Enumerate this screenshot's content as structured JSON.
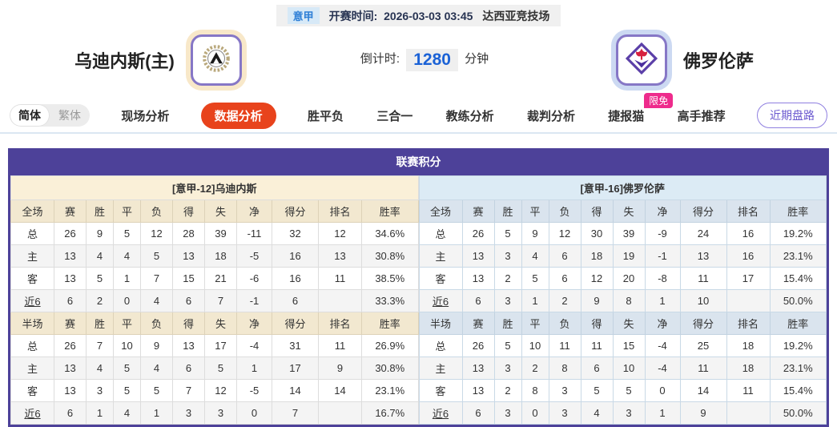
{
  "top": {
    "league": "意甲",
    "kickoff_label": "开赛时间:",
    "kickoff_time": "2026-03-03 03:45",
    "venue": "达西亚竞技场"
  },
  "teams": {
    "home_name": "乌迪内斯(主)",
    "away_name": "佛罗伦萨",
    "home_logo": "udinese-crest",
    "away_logo": "fiorentina-crest",
    "countdown_label": "倒计时:",
    "countdown_value": "1280",
    "countdown_unit": "分钟"
  },
  "nav": {
    "lang_simplified": "简体",
    "lang_traditional": "繁体",
    "tabs": [
      {
        "label": "现场分析",
        "active": false
      },
      {
        "label": "数据分析",
        "active": true
      },
      {
        "label": "胜平负",
        "active": false
      },
      {
        "label": "三合一",
        "active": false
      },
      {
        "label": "教练分析",
        "active": false
      },
      {
        "label": "裁判分析",
        "active": false
      },
      {
        "label": "捷报猫",
        "active": false,
        "badge": "限免"
      },
      {
        "label": "高手推荐",
        "active": false
      }
    ],
    "right_button": "近期盘路"
  },
  "colors": {
    "accent_purple": "#4d4199",
    "active_tab_orange": "#e8431c",
    "badge_pink": "#ee2b8c",
    "home_label_red": "#cc2a22",
    "away_label_blue": "#2742cc",
    "home_header_cream": "#faf0d8",
    "away_header_blue": "#dcebf5",
    "countdown_blue": "#1b62d6"
  },
  "table": {
    "title": "联赛积分",
    "home": {
      "header": "[意甲-12]乌迪内斯",
      "sections": [
        {
          "label_col": "全场",
          "columns": [
            "赛",
            "胜",
            "平",
            "负",
            "得",
            "失",
            "净",
            "得分",
            "排名",
            "胜率"
          ],
          "rows": [
            {
              "label": "总",
              "type": "total",
              "cells": [
                "26",
                "9",
                "5",
                "12",
                "28",
                "39",
                "-11",
                "32",
                "12",
                "34.6%"
              ]
            },
            {
              "label": "主",
              "type": "home",
              "cells": [
                "13",
                "4",
                "4",
                "5",
                "13",
                "18",
                "-5",
                "16",
                "13",
                "30.8%"
              ]
            },
            {
              "label": "客",
              "type": "away",
              "cells": [
                "13",
                "5",
                "1",
                "7",
                "15",
                "21",
                "-6",
                "16",
                "11",
                "38.5%"
              ]
            },
            {
              "label": "近6",
              "type": "recent",
              "cells": [
                "6",
                "2",
                "0",
                "4",
                "6",
                "7",
                "-1",
                "6",
                "",
                "33.3%"
              ]
            }
          ]
        },
        {
          "label_col": "半场",
          "columns": [
            "赛",
            "胜",
            "平",
            "负",
            "得",
            "失",
            "净",
            "得分",
            "排名",
            "胜率"
          ],
          "rows": [
            {
              "label": "总",
              "type": "total",
              "cells": [
                "26",
                "7",
                "10",
                "9",
                "13",
                "17",
                "-4",
                "31",
                "11",
                "26.9%"
              ]
            },
            {
              "label": "主",
              "type": "home",
              "cells": [
                "13",
                "4",
                "5",
                "4",
                "6",
                "5",
                "1",
                "17",
                "9",
                "30.8%"
              ]
            },
            {
              "label": "客",
              "type": "away",
              "cells": [
                "13",
                "3",
                "5",
                "5",
                "7",
                "12",
                "-5",
                "14",
                "14",
                "23.1%"
              ]
            },
            {
              "label": "近6",
              "type": "recent",
              "cells": [
                "6",
                "1",
                "4",
                "1",
                "3",
                "3",
                "0",
                "7",
                "",
                "16.7%"
              ]
            }
          ]
        }
      ]
    },
    "away": {
      "header": "[意甲-16]佛罗伦萨",
      "sections": [
        {
          "label_col": "全场",
          "columns": [
            "赛",
            "胜",
            "平",
            "负",
            "得",
            "失",
            "净",
            "得分",
            "排名",
            "胜率"
          ],
          "rows": [
            {
              "label": "总",
              "type": "total",
              "cells": [
                "26",
                "5",
                "9",
                "12",
                "30",
                "39",
                "-9",
                "24",
                "16",
                "19.2%"
              ]
            },
            {
              "label": "主",
              "type": "home",
              "cells": [
                "13",
                "3",
                "4",
                "6",
                "18",
                "19",
                "-1",
                "13",
                "16",
                "23.1%"
              ]
            },
            {
              "label": "客",
              "type": "away",
              "cells": [
                "13",
                "2",
                "5",
                "6",
                "12",
                "20",
                "-8",
                "11",
                "17",
                "15.4%"
              ]
            },
            {
              "label": "近6",
              "type": "recent",
              "cells": [
                "6",
                "3",
                "1",
                "2",
                "9",
                "8",
                "1",
                "10",
                "",
                "50.0%"
              ]
            }
          ]
        },
        {
          "label_col": "半场",
          "columns": [
            "赛",
            "胜",
            "平",
            "负",
            "得",
            "失",
            "净",
            "得分",
            "排名",
            "胜率"
          ],
          "rows": [
            {
              "label": "总",
              "type": "total",
              "cells": [
                "26",
                "5",
                "10",
                "11",
                "11",
                "15",
                "-4",
                "25",
                "18",
                "19.2%"
              ]
            },
            {
              "label": "主",
              "type": "home",
              "cells": [
                "13",
                "3",
                "2",
                "8",
                "6",
                "10",
                "-4",
                "11",
                "18",
                "23.1%"
              ]
            },
            {
              "label": "客",
              "type": "away",
              "cells": [
                "13",
                "2",
                "8",
                "3",
                "5",
                "5",
                "0",
                "14",
                "11",
                "15.4%"
              ]
            },
            {
              "label": "近6",
              "type": "recent",
              "cells": [
                "6",
                "3",
                "0",
                "3",
                "4",
                "3",
                "1",
                "9",
                "",
                "50.0%"
              ]
            }
          ]
        }
      ]
    }
  }
}
